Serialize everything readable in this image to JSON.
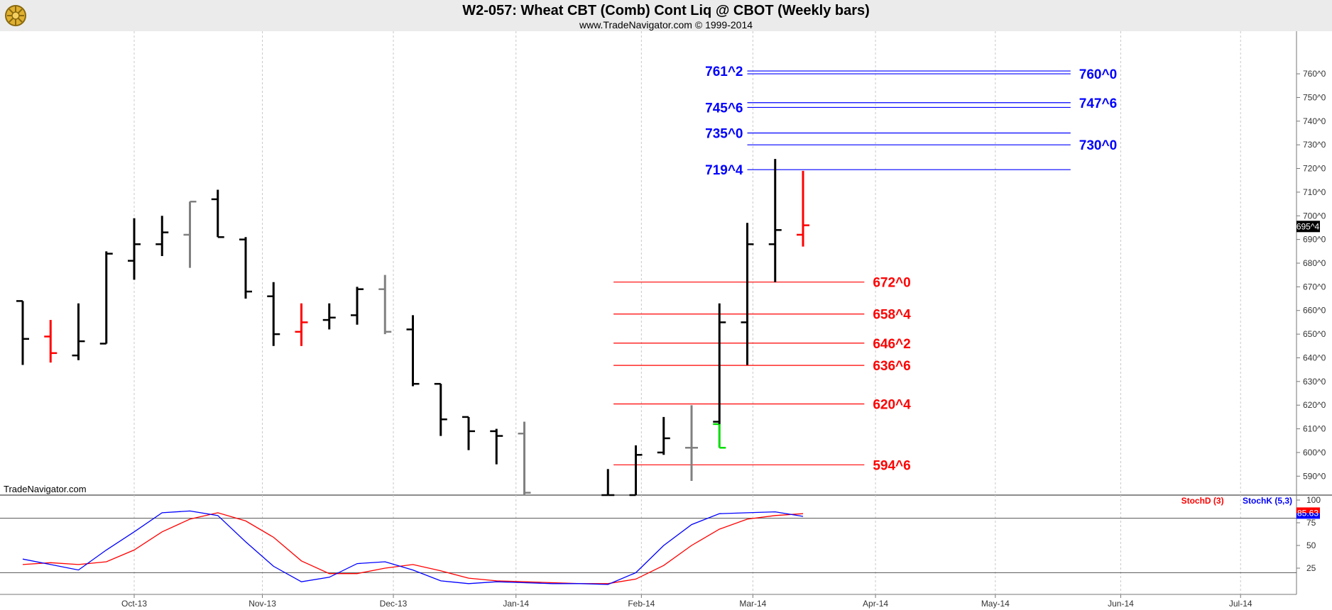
{
  "header": {
    "title": "W2-057:  Wheat CBT (Comb) Cont Liq @ CBOT  (Weekly bars)",
    "subtitle": "www.TradeNavigator.com © 1999-2014",
    "watermark": "TradeNavigator.com"
  },
  "colors": {
    "up": "#000000",
    "down": "#ff0000",
    "neutral": "#808080",
    "green": "#00dd00",
    "level_blue": "#0000ff",
    "level_red": "#ff0000",
    "stoch_d": "#ff0000",
    "stoch_k": "#0000ff"
  },
  "chart_data": [
    {
      "type": "ohlc",
      "name": "price",
      "y_range": [
        582,
        778
      ],
      "y_ticks": [
        {
          "value": 590,
          "label": "590^0"
        },
        {
          "value": 600,
          "label": "600^0"
        },
        {
          "value": 610,
          "label": "610^0"
        },
        {
          "value": 620,
          "label": "620^0"
        },
        {
          "value": 630,
          "label": "630^0"
        },
        {
          "value": 640,
          "label": "640^0"
        },
        {
          "value": 650,
          "label": "650^0"
        },
        {
          "value": 660,
          "label": "660^0"
        },
        {
          "value": 670,
          "label": "670^0"
        },
        {
          "value": 680,
          "label": "680^0"
        },
        {
          "value": 690,
          "label": "690^0"
        },
        {
          "value": 700,
          "label": "700^0"
        },
        {
          "value": 710,
          "label": "710^0"
        },
        {
          "value": 720,
          "label": "720^0"
        },
        {
          "value": 730,
          "label": "730^0"
        },
        {
          "value": 740,
          "label": "740^0"
        },
        {
          "value": 750,
          "label": "750^0"
        },
        {
          "value": 760,
          "label": "760^0"
        }
      ],
      "last_price": {
        "value": 695.5,
        "label": "695^4"
      },
      "x_labels": [
        {
          "week": 4.0,
          "label": "Oct-13"
        },
        {
          "week": 8.6,
          "label": "Nov-13"
        },
        {
          "week": 13.3,
          "label": "Dec-13"
        },
        {
          "week": 17.7,
          "label": "Jan-14"
        },
        {
          "week": 22.2,
          "label": "Feb-14"
        },
        {
          "week": 26.2,
          "label": "Mar-14"
        },
        {
          "week": 30.6,
          "label": "Apr-14"
        },
        {
          "week": 34.9,
          "label": "May-14"
        },
        {
          "week": 39.4,
          "label": "Jun-14"
        },
        {
          "week": 43.7,
          "label": "Jul-14"
        }
      ],
      "bars": [
        {
          "w": 0,
          "o": 664,
          "h": 664,
          "l": 637,
          "c": 648,
          "color": "up"
        },
        {
          "w": 1,
          "o": 649,
          "h": 656,
          "l": 638,
          "c": 642,
          "color": "down"
        },
        {
          "w": 2,
          "o": 641,
          "h": 663,
          "l": 639,
          "c": 647,
          "color": "up"
        },
        {
          "w": 3,
          "o": 646,
          "h": 685,
          "l": 646,
          "c": 684,
          "color": "up"
        },
        {
          "w": 4,
          "o": 681,
          "h": 699,
          "l": 673,
          "c": 688,
          "color": "up"
        },
        {
          "w": 5,
          "o": 688,
          "h": 700,
          "l": 683,
          "c": 693,
          "color": "up"
        },
        {
          "w": 6,
          "o": 692,
          "h": 706,
          "l": 678,
          "c": 706,
          "color": "neutral"
        },
        {
          "w": 7,
          "o": 707,
          "h": 711,
          "l": 691,
          "c": 691,
          "color": "up"
        },
        {
          "w": 8,
          "o": 690,
          "h": 691,
          "l": 665,
          "c": 668,
          "color": "up"
        },
        {
          "w": 9,
          "o": 666,
          "h": 672,
          "l": 645,
          "c": 650,
          "color": "up"
        },
        {
          "w": 10,
          "o": 651,
          "h": 663,
          "l": 645,
          "c": 655,
          "color": "down"
        },
        {
          "w": 11,
          "o": 656,
          "h": 663,
          "l": 652,
          "c": 657,
          "color": "up"
        },
        {
          "w": 12,
          "o": 658,
          "h": 670,
          "l": 654,
          "c": 669,
          "color": "up"
        },
        {
          "w": 13,
          "o": 669,
          "h": 675,
          "l": 650,
          "c": 651,
          "color": "neutral"
        },
        {
          "w": 14,
          "o": 652,
          "h": 658,
          "l": 628,
          "c": 629,
          "color": "up"
        },
        {
          "w": 15,
          "o": 629,
          "h": 629,
          "l": 607,
          "c": 614,
          "color": "up"
        },
        {
          "w": 16,
          "o": 615,
          "h": 615,
          "l": 601,
          "c": 609,
          "color": "up"
        },
        {
          "w": 17,
          "o": 609,
          "h": 610,
          "l": 595,
          "c": 607,
          "color": "up"
        },
        {
          "w": 18,
          "o": 608,
          "h": 613,
          "l": 582,
          "c": 583,
          "color": "neutral"
        },
        {
          "w": 21,
          "o": 582,
          "h": 593,
          "l": 582,
          "c": 582,
          "color": "up"
        },
        {
          "w": 22,
          "o": 582,
          "h": 603,
          "l": 582,
          "c": 599,
          "color": "up"
        },
        {
          "w": 23,
          "o": 600,
          "h": 615,
          "l": 599,
          "c": 606,
          "color": "up"
        },
        {
          "w": 24,
          "o": 602,
          "h": 620,
          "l": 588,
          "c": 602,
          "color": "neutral"
        },
        {
          "w": 25,
          "o": 612,
          "h": 612,
          "l": 602,
          "c": 602,
          "color": "green"
        },
        {
          "w": 25,
          "o": 613,
          "h": 663,
          "l": 612,
          "c": 655,
          "color": "up"
        },
        {
          "w": 26,
          "o": 655,
          "h": 697,
          "l": 637,
          "c": 688,
          "color": "up"
        },
        {
          "w": 27,
          "o": 688,
          "h": 724,
          "l": 672,
          "c": 694,
          "color": "up"
        },
        {
          "w": 28,
          "o": 692,
          "h": 719,
          "l": 687,
          "c": 696,
          "color": "down"
        }
      ],
      "levels": [
        {
          "label": "761^2",
          "value": 761.2,
          "color": "level_blue",
          "side": "left",
          "x_from": 26.0,
          "x_to": 37.6
        },
        {
          "label": "760^0",
          "value": 760.0,
          "color": "level_blue",
          "side": "right",
          "x_from": 26.0,
          "x_to": 37.6
        },
        {
          "label": "747^6",
          "value": 747.8,
          "color": "level_blue",
          "side": "right",
          "x_from": 26.0,
          "x_to": 37.6
        },
        {
          "label": "745^6",
          "value": 745.8,
          "color": "level_blue",
          "side": "left",
          "x_from": 26.0,
          "x_to": 37.6
        },
        {
          "label": "735^0",
          "value": 735.0,
          "color": "level_blue",
          "side": "left",
          "x_from": 26.0,
          "x_to": 37.6
        },
        {
          "label": "730^0",
          "value": 730.0,
          "color": "level_blue",
          "side": "right",
          "x_from": 26.0,
          "x_to": 37.6
        },
        {
          "label": "719^4",
          "value": 719.5,
          "color": "level_blue",
          "side": "left",
          "x_from": 26.0,
          "x_to": 37.6
        },
        {
          "label": "672^0",
          "value": 672.0,
          "color": "level_red",
          "side": "right",
          "x_from": 21.2,
          "x_to": 30.2
        },
        {
          "label": "658^4",
          "value": 658.5,
          "color": "level_red",
          "side": "right",
          "x_from": 21.2,
          "x_to": 30.2
        },
        {
          "label": "646^2",
          "value": 646.2,
          "color": "level_red",
          "side": "right",
          "x_from": 21.2,
          "x_to": 30.2
        },
        {
          "label": "636^6",
          "value": 636.8,
          "color": "level_red",
          "side": "right",
          "x_from": 21.2,
          "x_to": 30.2
        },
        {
          "label": "620^4",
          "value": 620.5,
          "color": "level_red",
          "side": "right",
          "x_from": 21.2,
          "x_to": 30.2
        },
        {
          "label": "594^6",
          "value": 594.8,
          "color": "level_red",
          "side": "right",
          "x_from": 21.2,
          "x_to": 30.2
        }
      ]
    },
    {
      "type": "line",
      "name": "stochastic",
      "y_range": [
        0,
        100
      ],
      "y_ticks": [
        {
          "value": 100,
          "label": "100"
        },
        {
          "value": 75,
          "label": "75"
        },
        {
          "value": 50,
          "label": "50"
        },
        {
          "value": 25,
          "label": "25"
        }
      ],
      "reference_lines": [
        80,
        20
      ],
      "last_value": {
        "value": 85.63,
        "label": "85.63"
      },
      "legend": [
        {
          "label": "StochD (3)",
          "color": "stoch_d"
        },
        {
          "label": "StochK (5,3)",
          "color": "stoch_k"
        }
      ],
      "series": [
        {
          "name": "StochD (3)",
          "color": "stoch_d",
          "x": [
            0,
            1,
            2,
            3,
            4,
            5,
            6,
            7,
            8,
            9,
            10,
            11,
            12,
            13,
            14,
            15,
            16,
            17,
            18,
            19,
            20,
            21,
            22,
            23,
            24,
            25,
            26,
            27,
            28
          ],
          "values": [
            29,
            31,
            29,
            32,
            45,
            65,
            79,
            86,
            77,
            59,
            33,
            19,
            19,
            25,
            29,
            22,
            14,
            11,
            10,
            9,
            8,
            8,
            13,
            28,
            50,
            68,
            79,
            83,
            85
          ]
        },
        {
          "name": "StochK (5,3)",
          "color": "stoch_k",
          "x": [
            0,
            1,
            2,
            3,
            4,
            5,
            6,
            7,
            8,
            9,
            10,
            11,
            12,
            13,
            14,
            15,
            16,
            17,
            18,
            19,
            20,
            21,
            22,
            23,
            24,
            25,
            26,
            27,
            28
          ],
          "values": [
            35,
            29,
            23,
            45,
            65,
            86,
            88,
            83,
            54,
            27,
            10,
            15,
            30,
            32,
            23,
            11,
            8,
            10,
            9,
            8,
            8,
            7,
            20,
            50,
            73,
            85,
            86,
            87,
            82
          ]
        }
      ]
    }
  ]
}
